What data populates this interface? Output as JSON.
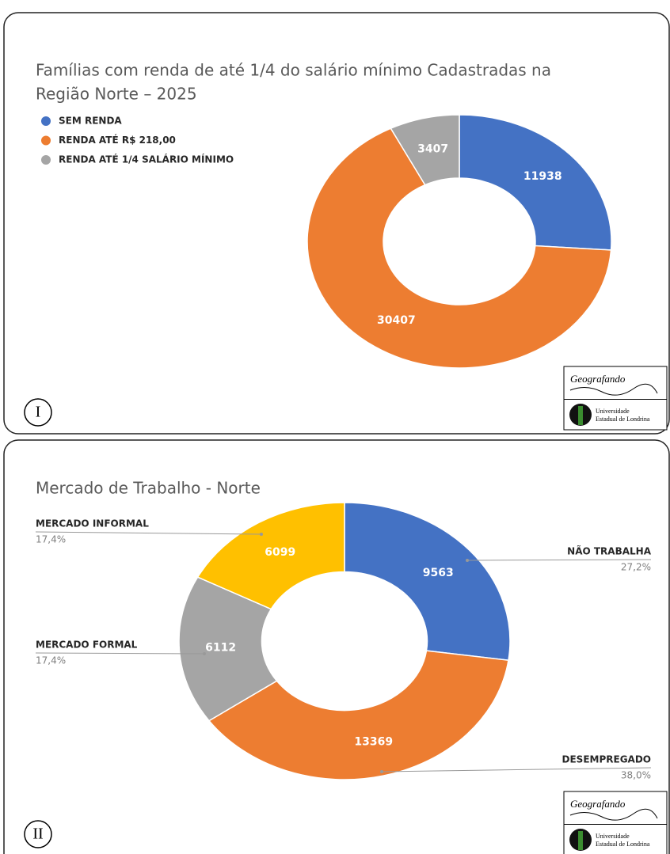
{
  "chart_data": [
    {
      "type": "donut",
      "title": "Famílias com renda de até 1/4 do salário mínimo Cadastradas na Região Norte – 2025",
      "title_lines": [
        "Famílias com renda de até 1/4 do salário mínimo Cadastradas na",
        "Região Norte – 2025"
      ],
      "categories": [
        "SEM RENDA",
        "RENDA ATÉ R$ 218,00",
        "RENDA ATÉ 1/4 SALÁRIO MÍNIMO"
      ],
      "values": [
        11938,
        30407,
        3407
      ],
      "colors": [
        "#4472c4",
        "#ed7d31",
        "#a5a5a5"
      ],
      "legend": "top-left"
    },
    {
      "type": "donut",
      "title": "Mercado de Trabalho - Norte",
      "categories": [
        "NÃO TRABALHA",
        "DESEMPREGADO",
        "MERCADO FORMAL",
        "MERCADO INFORMAL"
      ],
      "values": [
        9563,
        13369,
        6112,
        6099
      ],
      "percent_labels": [
        "27,2%",
        "38,0%",
        "17,4%",
        "17,4%"
      ],
      "colors": [
        "#4472c4",
        "#ed7d31",
        "#a5a5a5",
        "#ffc000"
      ]
    }
  ],
  "panel_labels": [
    "I",
    "II"
  ],
  "logo": {
    "name": "Geografando",
    "institution_line1": "Universidade",
    "institution_line2": "Estadual de Londrina"
  }
}
